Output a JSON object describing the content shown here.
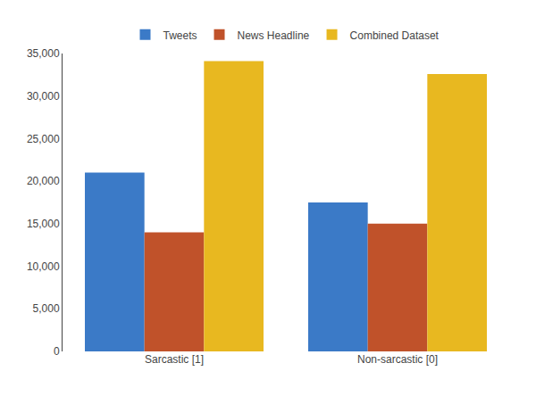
{
  "chart_data": {
    "type": "bar",
    "categories": [
      "Sarcastic [1]",
      "Non-sarcastic [0]"
    ],
    "series": [
      {
        "name": "Tweets",
        "color": "#3b7ac7",
        "values": [
          21000,
          17500
        ]
      },
      {
        "name": "News Headline",
        "color": "#c0522a",
        "values": [
          14000,
          15000
        ]
      },
      {
        "name": "Combined Dataset",
        "color": "#e8b820",
        "values": [
          34100,
          32600
        ]
      }
    ],
    "ylim": [
      0,
      35000
    ],
    "yticks": [
      0,
      {
        "value": 5000,
        "label": "5,000"
      },
      {
        "value": 10000,
        "label": "10,000"
      },
      {
        "value": 15000,
        "label": "15,000"
      },
      {
        "value": 20000,
        "label": "20,000"
      },
      {
        "value": 25000,
        "label": "25,000"
      },
      {
        "value": 30000,
        "label": "30,000"
      },
      {
        "value": 35000,
        "label": "35,000"
      }
    ],
    "grid": false,
    "legend": "top"
  }
}
